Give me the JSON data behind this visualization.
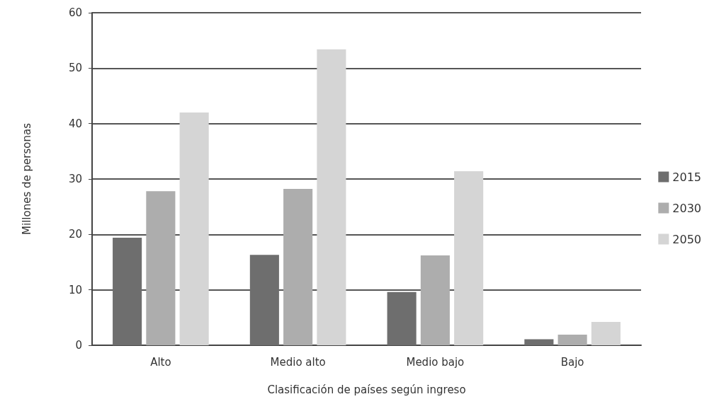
{
  "chart_data": {
    "type": "bar",
    "xlabel": "Clasificación de países según ingreso",
    "ylabel": "Millones de personas",
    "categories": [
      "Alto",
      "Medio alto",
      "Medio bajo",
      "Bajo"
    ],
    "series": [
      {
        "name": "2015",
        "color": "#6e6e6e",
        "values": [
          19.4,
          16.3,
          9.6,
          1.1
        ]
      },
      {
        "name": "2030",
        "color": "#adadad",
        "values": [
          27.8,
          28.2,
          16.2,
          1.9
        ]
      },
      {
        "name": "2050",
        "color": "#d5d5d5",
        "values": [
          42,
          53.4,
          31.4,
          4.2
        ]
      }
    ],
    "ylim": [
      0,
      60
    ],
    "yticks": [
      0,
      10,
      20,
      30,
      40,
      50,
      60
    ],
    "grid": "y",
    "legend": "right"
  }
}
